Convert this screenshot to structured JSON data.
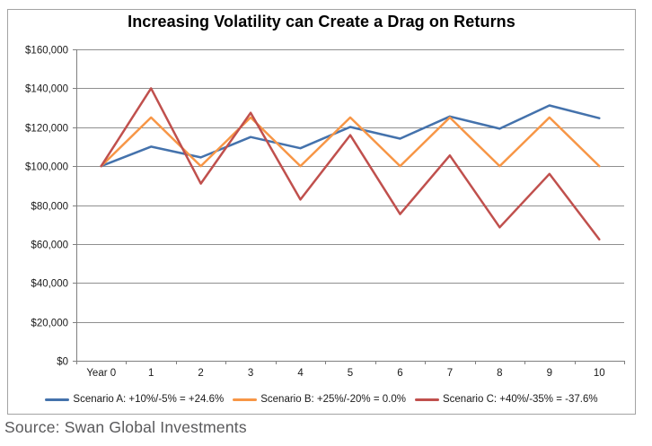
{
  "chart_data": {
    "type": "line",
    "title": "Increasing Volatility can Create a Drag on Returns",
    "x_categories": [
      "Year 0",
      "1",
      "2",
      "3",
      "4",
      "5",
      "6",
      "7",
      "8",
      "9",
      "10"
    ],
    "series": [
      {
        "name": "Scenario A: +10%/-5% = +24.6%",
        "color": "#4472AC",
        "values": [
          100000,
          110000,
          104500,
          114950,
          109203,
          120123,
          114117,
          125528,
          119252,
          131177,
          124618
        ]
      },
      {
        "name": "Scenario B: +25%/-20% = 0.0%",
        "color": "#F79646",
        "values": [
          100000,
          125000,
          100000,
          125000,
          100000,
          125000,
          100000,
          125000,
          100000,
          125000,
          100000
        ]
      },
      {
        "name": "Scenario C: +40%/-35% = -37.6%",
        "color": "#C0504D",
        "values": [
          100000,
          140000,
          91000,
          127400,
          82810,
          115934,
          75357,
          105500,
          68575,
          96005,
          62403
        ]
      }
    ],
    "ylim": [
      0,
      160000
    ],
    "ytick_step": 20000,
    "ytick_labels": [
      "$0",
      "$20,000",
      "$40,000",
      "$60,000",
      "$80,000",
      "$100,000",
      "$120,000",
      "$140,000",
      "$160,000"
    ],
    "xlabel": "",
    "ylabel": "",
    "grid": true,
    "legend_position": "bottom"
  },
  "source_caption": "Source: Swan Global Investments",
  "colors": {
    "grid": "#8f8f8f",
    "axis": "#7f7f7f",
    "tick_label": "#1a1a1a",
    "title": "#000000",
    "frame_border": "#a3a3a3",
    "source_text": "#59595b",
    "background": "#ffffff"
  }
}
